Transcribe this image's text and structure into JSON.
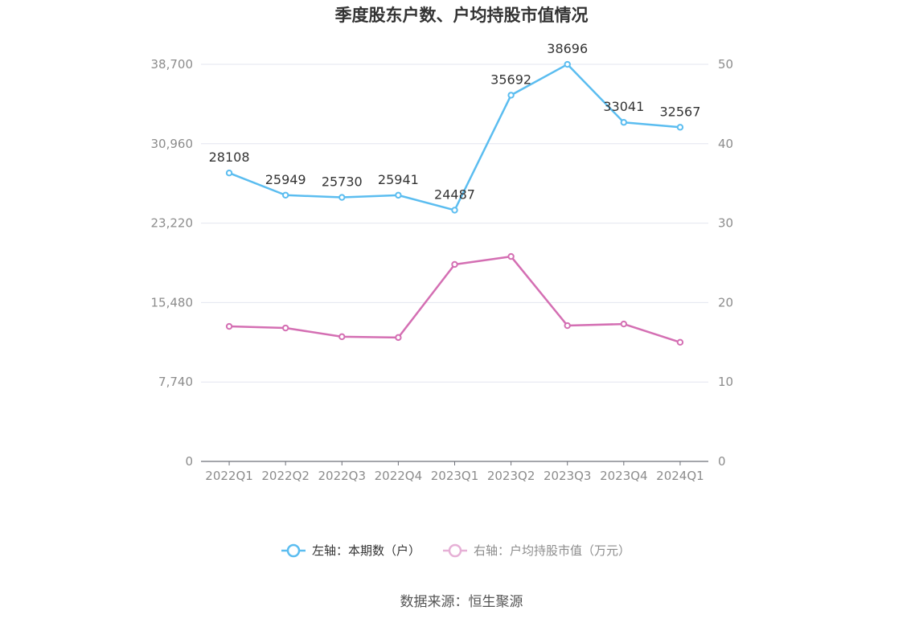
{
  "chart_data": {
    "type": "line",
    "title": "季度股东户数、户均持股市值情况",
    "categories": [
      "2022Q1",
      "2022Q2",
      "2022Q3",
      "2022Q4",
      "2023Q1",
      "2023Q2",
      "2023Q3",
      "2023Q4",
      "2024Q1"
    ],
    "left_axis": {
      "min": 0,
      "max": 38700,
      "ticks": [
        0,
        7740,
        15480,
        23220,
        30960,
        38700
      ],
      "tick_labels": [
        "0",
        "7,740",
        "15,480",
        "23,220",
        "30,960",
        "38,700"
      ]
    },
    "right_axis": {
      "min": 0,
      "max": 50,
      "ticks": [
        0,
        10,
        20,
        30,
        40,
        50
      ],
      "tick_labels": [
        "0",
        "10",
        "20",
        "30",
        "40",
        "50"
      ]
    },
    "grid": true,
    "legend_position": "bottom",
    "series": [
      {
        "name": "左轴：本期数（户）",
        "axis": "left",
        "color": "#5bbdf0",
        "values": [
          28108,
          25949,
          25730,
          25941,
          24487,
          35692,
          38696,
          33041,
          32567
        ],
        "labels": [
          "28108",
          "25949",
          "25730",
          "25941",
          "24487",
          "35692",
          "38696",
          "33041",
          "32567"
        ]
      },
      {
        "name": "右轴：户均持股市值（万元）",
        "axis": "right",
        "color": "#d46fb3",
        "values": [
          17.0,
          16.8,
          15.7,
          15.6,
          24.8,
          25.8,
          17.1,
          17.3,
          15.0
        ]
      }
    ]
  },
  "source_text": "数据来源：恒生聚源"
}
